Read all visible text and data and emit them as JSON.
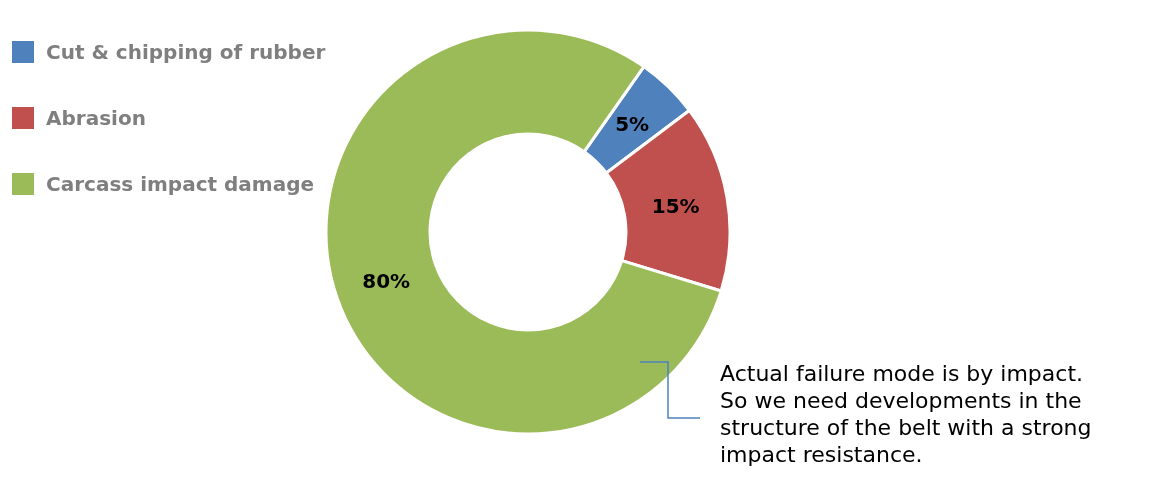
{
  "chart_data": {
    "type": "donut",
    "categories": [
      "Cut & chipping of rubber",
      "Abrasion",
      "Carcass impact damage"
    ],
    "values": [
      5,
      15,
      80
    ],
    "colors": [
      "#4f81bd",
      "#c0504d",
      "#9bbb59"
    ],
    "value_labels": [
      "5%",
      "15%",
      "80%"
    ],
    "legend": "top left",
    "annotations": [
      "Actual failure mode is by impact. So we need developments in the structure of the belt with a strong impact resistance."
    ]
  }
}
